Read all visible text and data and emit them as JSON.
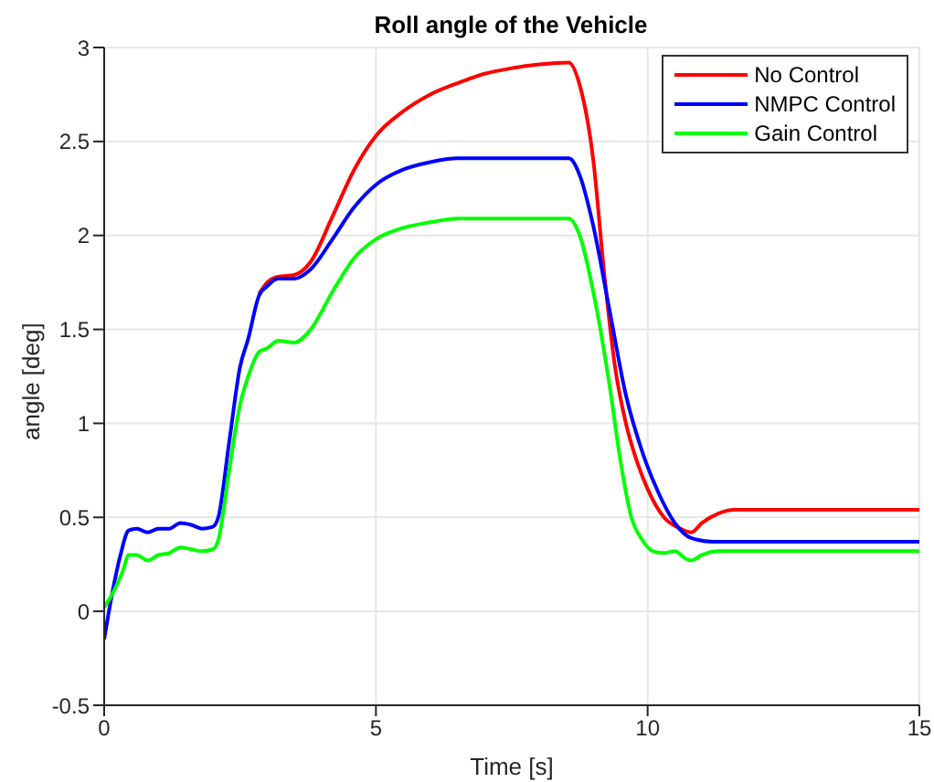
{
  "chart_data": {
    "type": "line",
    "title": "Roll angle of the Vehicle",
    "xlabel": "Time [s]",
    "ylabel": "angle [deg]",
    "xlim": [
      0,
      15
    ],
    "xticks": [
      0,
      5,
      10,
      15
    ],
    "ylim": [
      -0.5,
      3
    ],
    "yticks": [
      -0.5,
      0,
      0.5,
      1,
      1.5,
      2,
      2.5,
      3
    ],
    "grid": true,
    "legend": "top right",
    "marker": "none",
    "line_style": "solid",
    "series": [
      {
        "name": "No Control",
        "color": "#ff0000",
        "x": [
          2.85,
          3.0,
          3.2,
          3.5,
          3.8,
          4.2,
          4.6,
          5,
          5.5,
          6,
          6.5,
          7,
          7.5,
          8,
          8.55,
          8.75,
          9.0,
          9.2,
          9.4,
          9.6,
          9.8,
          10.0,
          10.3,
          10.6,
          10.8,
          11.0,
          11.3,
          11.6,
          12,
          15
        ],
        "values": [
          1.69,
          1.75,
          1.78,
          1.79,
          1.86,
          2.1,
          2.35,
          2.53,
          2.66,
          2.75,
          2.81,
          2.86,
          2.89,
          2.91,
          2.92,
          2.8,
          2.4,
          1.8,
          1.3,
          1.0,
          0.8,
          0.65,
          0.5,
          0.44,
          0.42,
          0.47,
          0.52,
          0.54,
          0.54,
          0.54
        ]
      },
      {
        "name": "NMPC Control",
        "color": "#0000ff",
        "x": [
          0,
          0.15,
          0.3,
          0.45,
          0.6,
          0.8,
          1.0,
          1.2,
          1.4,
          1.6,
          1.8,
          2.0,
          2.1,
          2.3,
          2.5,
          2.65,
          2.85,
          3.0,
          3.2,
          3.5,
          3.8,
          4.2,
          4.6,
          5,
          5.5,
          6,
          6.5,
          8.55,
          8.75,
          9.0,
          9.3,
          9.6,
          9.9,
          10.2,
          10.5,
          10.8,
          11.2,
          15
        ],
        "values": [
          -0.15,
          0.1,
          0.3,
          0.43,
          0.44,
          0.42,
          0.44,
          0.44,
          0.47,
          0.46,
          0.44,
          0.45,
          0.5,
          0.9,
          1.3,
          1.45,
          1.68,
          1.73,
          1.77,
          1.77,
          1.82,
          1.98,
          2.15,
          2.27,
          2.35,
          2.39,
          2.41,
          2.41,
          2.32,
          2.05,
          1.6,
          1.15,
          0.85,
          0.63,
          0.47,
          0.39,
          0.37,
          0.37
        ]
      },
      {
        "name": "Gain Control",
        "color": "#00ff00",
        "x": [
          0,
          0.2,
          0.35,
          0.45,
          0.6,
          0.8,
          1.0,
          1.2,
          1.4,
          1.6,
          1.8,
          2.0,
          2.1,
          2.3,
          2.5,
          2.65,
          2.85,
          3.0,
          3.2,
          3.5,
          3.8,
          4.2,
          4.6,
          5,
          5.5,
          6,
          6.5,
          8.55,
          8.75,
          9.0,
          9.3,
          9.5,
          9.7,
          9.9,
          10.1,
          10.3,
          10.5,
          10.7,
          10.8,
          11.0,
          11.3,
          15
        ],
        "values": [
          0.02,
          0.12,
          0.22,
          0.3,
          0.3,
          0.27,
          0.3,
          0.31,
          0.34,
          0.33,
          0.32,
          0.33,
          0.38,
          0.75,
          1.1,
          1.25,
          1.38,
          1.4,
          1.44,
          1.43,
          1.5,
          1.7,
          1.88,
          1.98,
          2.04,
          2.07,
          2.09,
          2.09,
          2.0,
          1.7,
          1.2,
          0.8,
          0.5,
          0.38,
          0.32,
          0.31,
          0.32,
          0.28,
          0.27,
          0.3,
          0.32,
          0.32
        ]
      }
    ]
  }
}
